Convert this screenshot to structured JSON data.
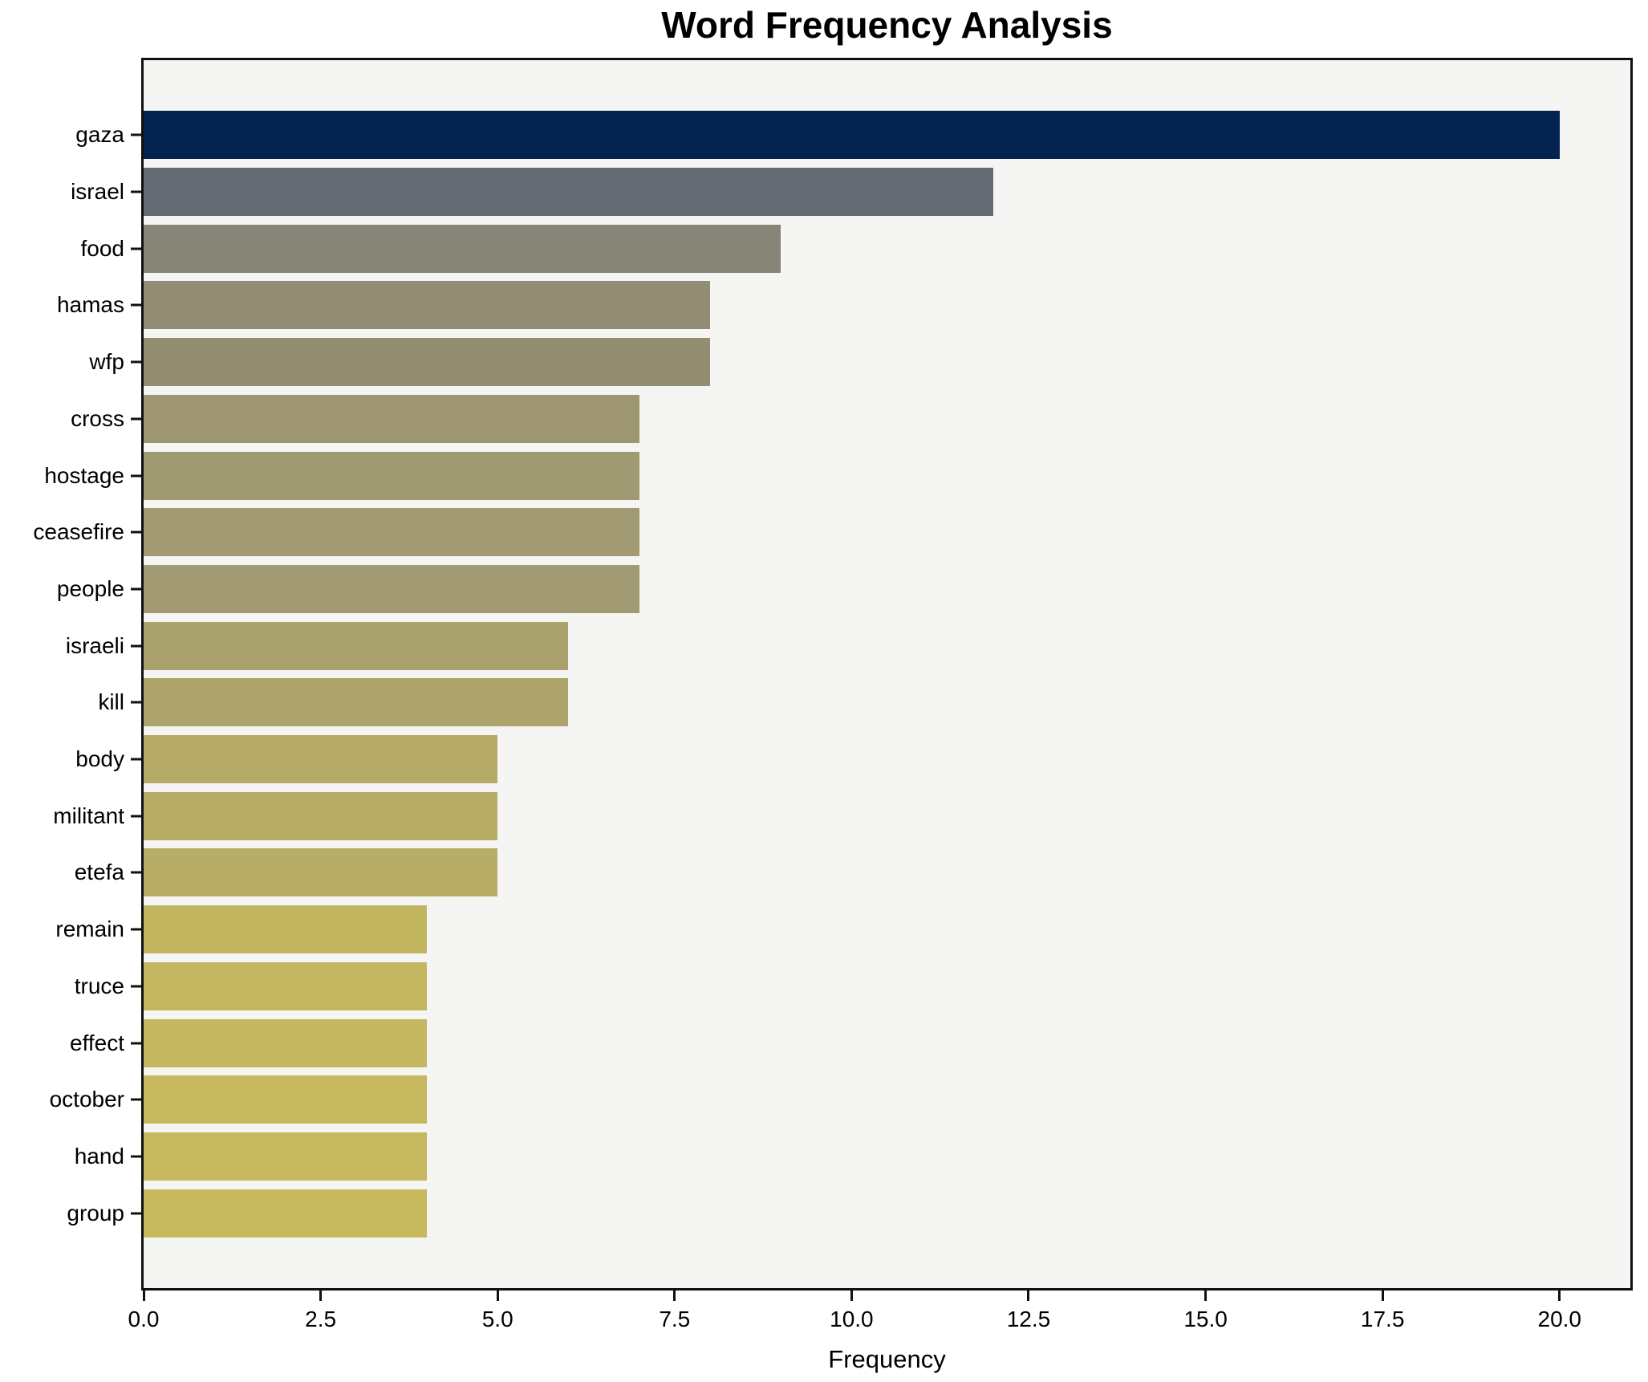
{
  "chart_data": {
    "type": "bar",
    "orientation": "horizontal",
    "title": "Word Frequency Analysis",
    "xlabel": "Frequency",
    "ylabel": "",
    "categories": [
      "gaza",
      "israel",
      "food",
      "hamas",
      "wfp",
      "cross",
      "hostage",
      "ceasefire",
      "people",
      "israeli",
      "kill",
      "body",
      "militant",
      "etefa",
      "remain",
      "truce",
      "effect",
      "october",
      "hand",
      "group"
    ],
    "values": [
      20,
      12,
      9,
      8,
      8,
      7,
      7,
      7,
      7,
      6,
      6,
      5,
      5,
      5,
      4,
      4,
      4,
      4,
      4,
      4
    ],
    "bar_colors": [
      "#03224f",
      "#666a72",
      "#878578",
      "#928d74",
      "#938d72",
      "#9d9670",
      "#a09a72",
      "#a19a72",
      "#a19a72",
      "#aaa26c",
      "#aca46a",
      "#b5ab67",
      "#b7ad66",
      "#b7ad66",
      "#c2b560",
      "#c4b660",
      "#c5b75f",
      "#c6b85e",
      "#c6b85e",
      "#c7b95e"
    ],
    "xticks": [
      0.0,
      2.5,
      5.0,
      7.5,
      10.0,
      12.5,
      15.0,
      17.5,
      20.0
    ],
    "xlim": [
      0,
      21
    ],
    "grid": false,
    "legend": null,
    "plot_background": "#f5f5f3",
    "figure_background": "#ffffff",
    "spine_color": "#111111",
    "text_color": "#000000"
  }
}
